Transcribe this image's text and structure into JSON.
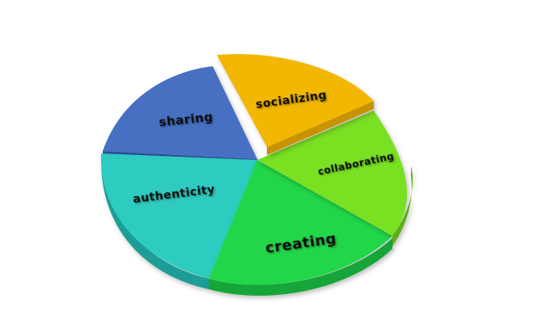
{
  "diagram": {
    "slices": [
      {
        "id": "socializing",
        "label": "socializing",
        "color": "#F2B705"
      },
      {
        "id": "collaborating",
        "label": "collaborating",
        "color": "#79E020"
      },
      {
        "id": "creating",
        "label": "creating",
        "color": "#22D64A"
      },
      {
        "id": "authenticity",
        "label": "authenticity",
        "color": "#2ECBC0"
      },
      {
        "id": "sharing",
        "label": "sharing",
        "color": "#4670C2"
      }
    ]
  }
}
